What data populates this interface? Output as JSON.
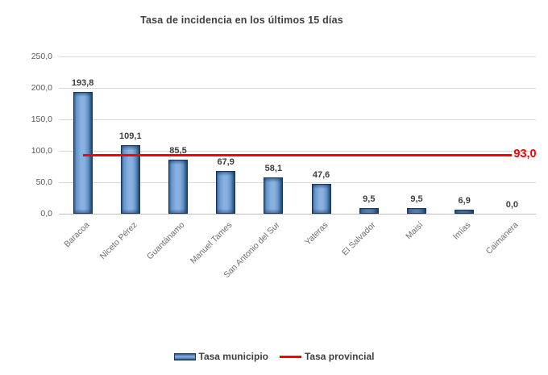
{
  "chart_data": {
    "type": "bar",
    "title": "Tasa de incidencia en los últimos 15 días",
    "categories": [
      "Baracoa",
      "Niceto Pérez",
      "Guantánamo",
      "Manuel Tames",
      "San Antonio del Sur",
      "Yateras",
      "El Salvador",
      "Maisí",
      "Imías",
      "Caimanera"
    ],
    "series": [
      {
        "name": "Tasa municipio",
        "type": "bar",
        "values": [
          193.8,
          109.1,
          85.5,
          67.9,
          58.1,
          47.6,
          9.5,
          9.5,
          6.9,
          0.0
        ],
        "value_labels": [
          "193,8",
          "109,1",
          "85,5",
          "67,9",
          "58,1",
          "47,6",
          "9,5",
          "9,5",
          "6,9",
          "0,0"
        ]
      },
      {
        "name": "Tasa provincial",
        "type": "line",
        "value": 93.0,
        "value_label": "93,0"
      }
    ],
    "xlabel": "",
    "ylabel": "",
    "ylim": [
      0,
      250
    ],
    "ytick_interval": 50,
    "ytick_labels": [
      "250,0",
      "200,0",
      "150,0",
      "100,0",
      "50,0",
      "0,0"
    ],
    "grid": true,
    "legend_position": "bottom",
    "colors": {
      "bar_fill": "#7aa4d9",
      "bar_edge": "#17375e",
      "provincial_line": "#ff0000",
      "title_text": "#404040",
      "value_label_text": "#3f3f3f",
      "axis_text": "#6e6e6e",
      "ytick_text": "#595959",
      "gridline": "#d9d9d9",
      "axis_line": "#bfbfbf",
      "background": "#ffffff"
    }
  }
}
